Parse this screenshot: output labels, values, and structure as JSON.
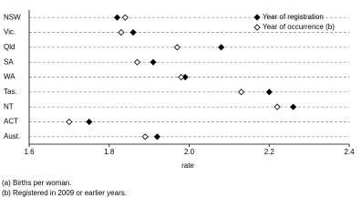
{
  "chart_data": {
    "type": "dot",
    "categories": [
      "NSW",
      "Vic.",
      "Qld",
      "SA",
      "WA",
      "Tas.",
      "NT",
      "ACT",
      "Aust."
    ],
    "series": [
      {
        "name": "Year of registration",
        "color": "#000000",
        "values": [
          1.82,
          1.86,
          2.08,
          1.91,
          1.99,
          2.2,
          2.26,
          1.75,
          1.92
        ]
      },
      {
        "name": "Year of occurrence (b)",
        "color": "#ffffff",
        "values": [
          1.84,
          1.83,
          1.97,
          1.87,
          1.98,
          2.13,
          2.22,
          1.7,
          1.89
        ]
      }
    ],
    "xlim": [
      1.6,
      2.4
    ],
    "xticks": [
      1.6,
      1.8,
      {
        "value": 2,
        "label": "2.0"
      },
      2.2,
      2.4
    ],
    "xlabel": "rate",
    "legend": "upper right",
    "footnotes": [
      "(a) Births per woman.",
      "(b) Registered in 2009 or earlier years."
    ]
  }
}
